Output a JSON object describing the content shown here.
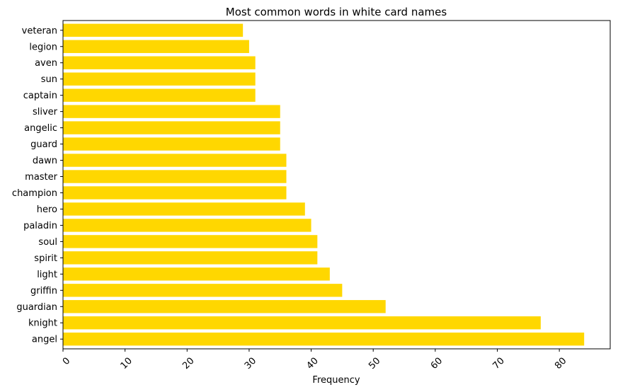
{
  "chart_data": {
    "type": "bar",
    "orientation": "horizontal",
    "title": "Most common words in white card names",
    "xlabel": "Frequency",
    "ylabel": "",
    "xlim": [
      0,
      88.2
    ],
    "xticks": [
      0,
      10,
      20,
      30,
      40,
      50,
      60,
      70,
      80
    ],
    "xtick_rotation": 45,
    "grid": false,
    "legend": "none",
    "bar_color": "#FFD700",
    "categories": [
      "angel",
      "knight",
      "guardian",
      "griffin",
      "light",
      "spirit",
      "soul",
      "paladin",
      "hero",
      "champion",
      "master",
      "dawn",
      "guard",
      "angelic",
      "sliver",
      "captain",
      "sun",
      "aven",
      "legion",
      "veteran"
    ],
    "values": [
      84,
      77,
      52,
      45,
      43,
      41,
      41,
      40,
      39,
      36,
      36,
      36,
      35,
      35,
      35,
      31,
      31,
      31,
      30,
      29
    ]
  }
}
